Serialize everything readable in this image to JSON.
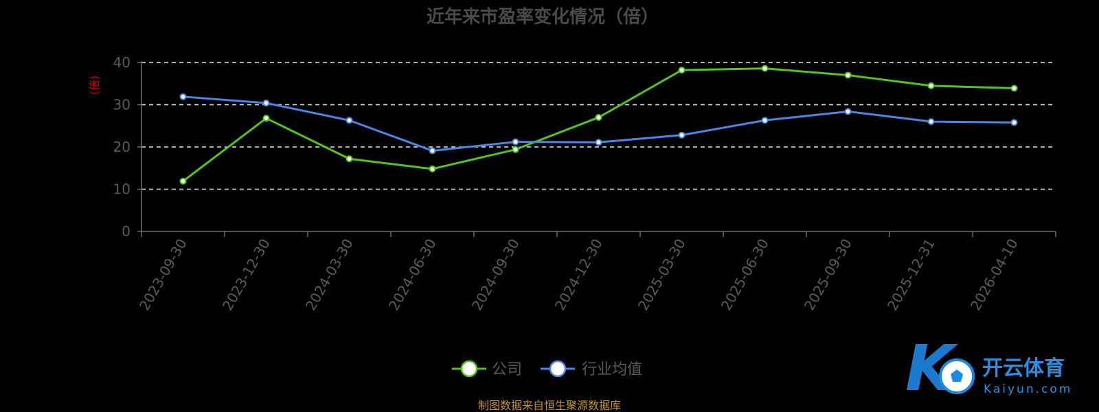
{
  "chart_data": {
    "type": "line",
    "title": "近年来市盈率变化情况（倍）",
    "ylabel": "(倍)",
    "xlabel": "",
    "ylim": [
      0,
      40
    ],
    "yticks": [
      0,
      10,
      20,
      30,
      40
    ],
    "grid": true,
    "legend_position": "bottom-center",
    "categories": [
      "2023-09-30",
      "2023-12-30",
      "2024-03-30",
      "2024-06-30",
      "2024-09-30",
      "2024-12-30",
      "2025-03-30",
      "2025-06-30",
      "2025-09-30",
      "2025-12-31",
      "2026-04-10"
    ],
    "series": [
      {
        "name": "公司",
        "color": "#52c41a",
        "values": [
          11.9,
          26.8,
          17.2,
          14.8,
          19.4,
          27.0,
          38.2,
          38.6,
          37.0,
          34.5,
          33.9
        ]
      },
      {
        "name": "行业均值",
        "color": "#4a86e8",
        "values": [
          31.9,
          30.4,
          26.3,
          19.1,
          21.2,
          21.1,
          22.8,
          26.3,
          28.4,
          26.0,
          25.8
        ]
      }
    ]
  },
  "footer": {
    "source": "制图数据来自恒生聚源数据库"
  },
  "watermark": {
    "name": "开云体育",
    "url": "Kaiyun.com"
  }
}
